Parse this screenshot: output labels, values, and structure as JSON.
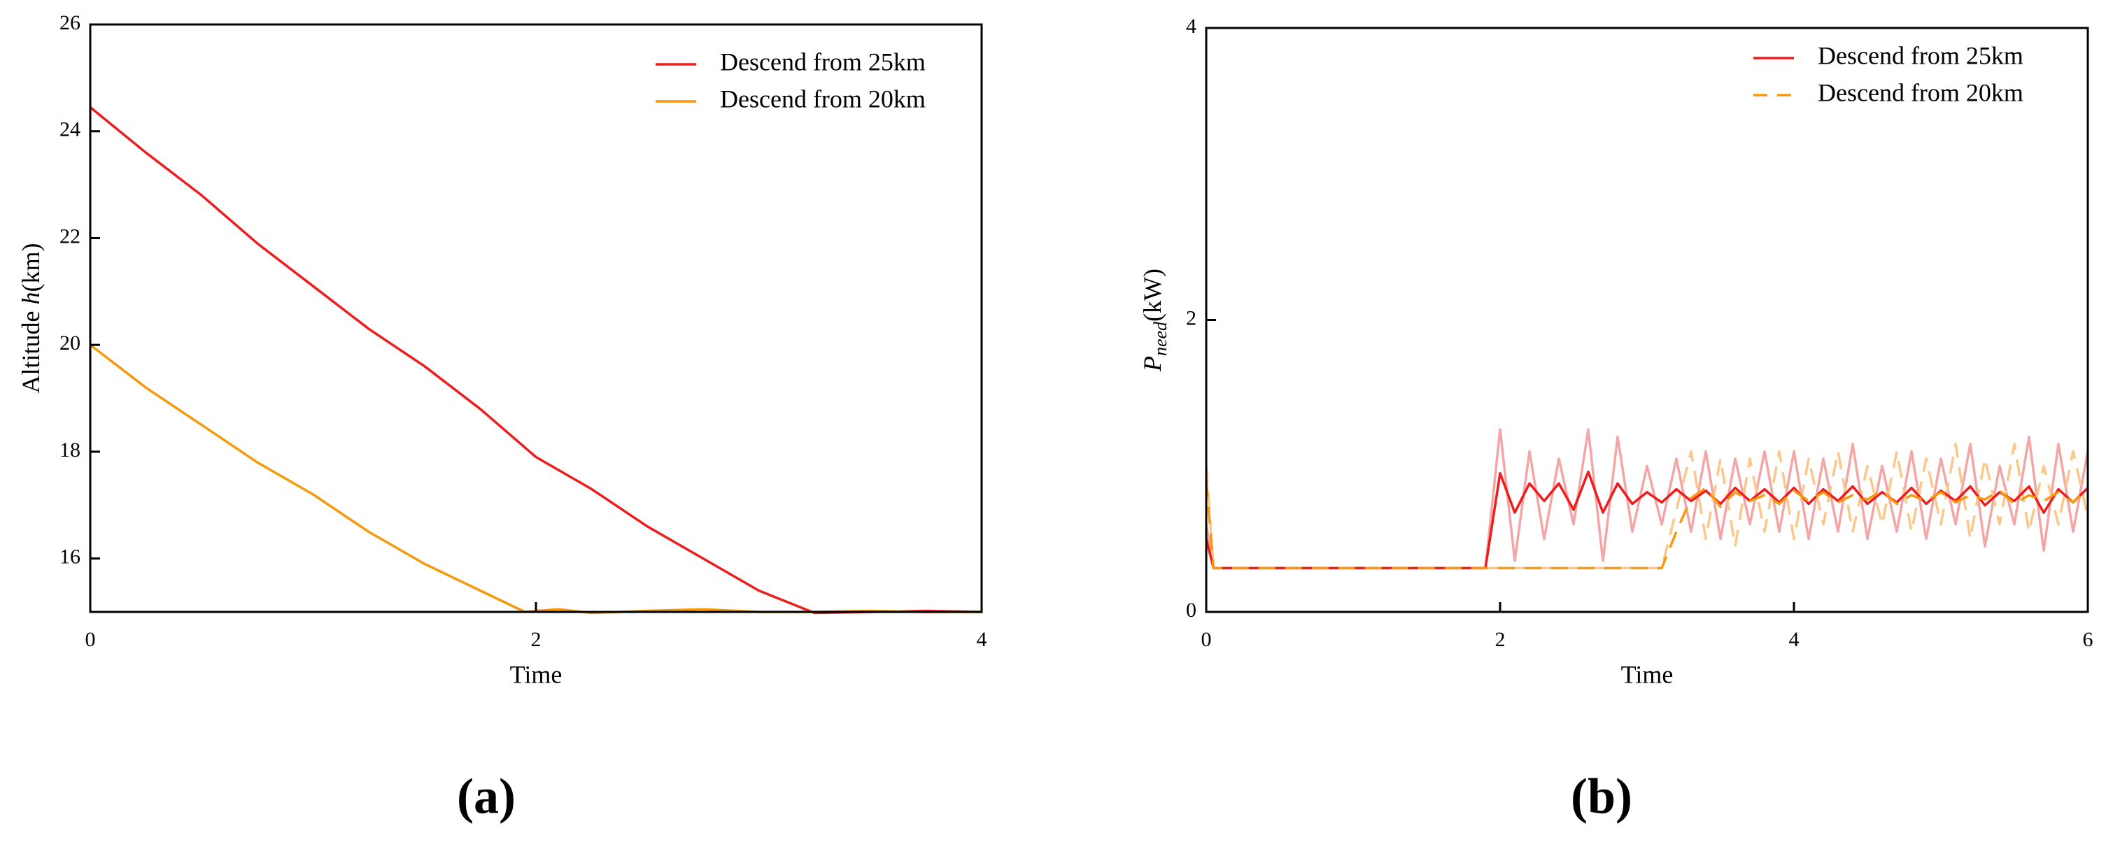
{
  "chart_data": [
    {
      "type": "line",
      "panel_label": "(a)",
      "xlabel": "Time",
      "ylabel": [
        "Altitude ",
        "h",
        "(km)"
      ],
      "ylabel_styles": [
        "normal",
        "italic",
        "normal"
      ],
      "xlim": [
        0,
        4
      ],
      "xticks": [
        0,
        2,
        4
      ],
      "ylim": [
        15,
        26
      ],
      "yticks": [
        16,
        18,
        20,
        22,
        24,
        26
      ],
      "series": [
        {
          "name": "Descend from 25km",
          "color": "#ee1c1c",
          "dash": false,
          "x": [
            0,
            0.25,
            0.5,
            0.75,
            1,
            1.25,
            1.5,
            1.75,
            2,
            2.25,
            2.5,
            2.75,
            3,
            3.25,
            3.5,
            3.75,
            4
          ],
          "values": [
            24.45,
            23.6,
            22.8,
            21.9,
            21.1,
            20.3,
            19.6,
            18.8,
            17.9,
            17.3,
            16.6,
            16.0,
            15.4,
            14.98,
            15.0,
            15.02,
            15.0
          ]
        },
        {
          "name": "Descend from 20km",
          "color": "#f7990c",
          "dash": false,
          "x": [
            0,
            0.25,
            0.5,
            0.75,
            1,
            1.25,
            1.5,
            1.75,
            1.95,
            2.1,
            2.25,
            2.5,
            2.75,
            3,
            3.25,
            3.5,
            3.75,
            4
          ],
          "values": [
            20,
            19.2,
            18.5,
            17.8,
            17.2,
            16.5,
            15.9,
            15.4,
            15.0,
            15.05,
            14.98,
            15.02,
            15.05,
            15.0,
            15.0,
            15.02,
            15.0,
            15.0
          ]
        }
      ]
    },
    {
      "type": "line",
      "panel_label": "(b)",
      "xlabel": "Time",
      "ylabel": [
        "P",
        "need",
        "(kW)"
      ],
      "ylabel_styles": [
        "italic",
        "italic-sub",
        "normal"
      ],
      "xlim": [
        0,
        6
      ],
      "xticks": [
        0,
        2,
        4,
        6
      ],
      "ylim": [
        0,
        4
      ],
      "yticks": [
        0,
        2,
        4
      ],
      "series": [
        {
          "color": "#f4a6a6",
          "dash": false,
          "x": [
            0,
            0.05,
            0.1,
            0.2,
            0.3,
            0.4,
            0.5,
            0.6,
            0.7,
            0.8,
            0.9,
            1.0,
            1.1,
            1.2,
            1.3,
            1.4,
            1.5,
            1.6,
            1.7,
            1.8,
            1.9,
            2.0,
            2.1,
            2.2,
            2.3,
            2.4,
            2.5,
            2.6,
            2.7,
            2.8,
            2.9,
            3.0,
            3.1,
            3.2,
            3.3,
            3.4,
            3.5,
            3.6,
            3.7,
            3.8,
            3.9,
            4.0,
            4.1,
            4.2,
            4.3,
            4.4,
            4.5,
            4.6,
            4.7,
            4.8,
            4.9,
            5.0,
            5.1,
            5.2,
            5.3,
            5.4,
            5.5,
            5.6,
            5.7,
            5.8,
            5.9,
            6.0
          ],
          "values": [
            0.6,
            0.3,
            0.3,
            0.3,
            0.3,
            0.3,
            0.3,
            0.3,
            0.3,
            0.3,
            0.3,
            0.3,
            0.3,
            0.3,
            0.3,
            0.3,
            0.3,
            0.3,
            0.3,
            0.3,
            0.3,
            1.25,
            0.35,
            1.1,
            0.5,
            1.05,
            0.6,
            1.25,
            0.35,
            1.2,
            0.55,
            1.0,
            0.6,
            1.05,
            0.55,
            1.1,
            0.5,
            1.05,
            0.6,
            1.1,
            0.55,
            1.1,
            0.5,
            1.05,
            0.55,
            1.15,
            0.5,
            1.0,
            0.55,
            1.1,
            0.5,
            1.05,
            0.6,
            1.15,
            0.45,
            1.0,
            0.6,
            1.2,
            0.42,
            1.15,
            0.55,
            1.1
          ]
        },
        {
          "color": "#fbc88a",
          "dash": true,
          "x": [
            0,
            0.05,
            0.1,
            0.2,
            0.3,
            0.4,
            0.5,
            0.6,
            0.7,
            0.8,
            0.9,
            1.0,
            1.1,
            1.2,
            1.3,
            1.4,
            1.5,
            1.6,
            1.7,
            1.8,
            1.9,
            2.0,
            2.1,
            2.2,
            2.3,
            2.4,
            2.5,
            2.6,
            2.7,
            2.8,
            2.9,
            3.0,
            3.1,
            3.2,
            3.3,
            3.4,
            3.5,
            3.6,
            3.7,
            3.8,
            3.9,
            4.0,
            4.1,
            4.2,
            4.3,
            4.4,
            4.5,
            4.6,
            4.7,
            4.8,
            4.9,
            5.0,
            5.1,
            5.2,
            5.3,
            5.4,
            5.5,
            5.6,
            5.7,
            5.8,
            5.9,
            6.0
          ],
          "values": [
            1.0,
            0.3,
            0.3,
            0.3,
            0.3,
            0.3,
            0.3,
            0.3,
            0.3,
            0.3,
            0.3,
            0.3,
            0.3,
            0.3,
            0.3,
            0.3,
            0.3,
            0.3,
            0.3,
            0.3,
            0.3,
            0.3,
            0.3,
            0.3,
            0.3,
            0.3,
            0.3,
            0.3,
            0.3,
            0.3,
            0.3,
            0.3,
            0.3,
            0.7,
            1.1,
            0.5,
            1.05,
            0.45,
            1.05,
            0.55,
            1.1,
            0.5,
            1.05,
            0.6,
            1.1,
            0.55,
            1.0,
            0.6,
            1.1,
            0.55,
            1.05,
            0.6,
            1.15,
            0.5,
            1.05,
            0.6,
            1.15,
            0.55,
            1.0,
            0.6,
            1.1,
            0.65
          ]
        },
        {
          "name": "Descend from 25km",
          "color": "#ee1c1c",
          "dash": false,
          "x": [
            0,
            0.05,
            0.1,
            0.2,
            0.3,
            0.4,
            0.5,
            0.6,
            0.7,
            0.8,
            0.9,
            1.0,
            1.1,
            1.2,
            1.3,
            1.4,
            1.5,
            1.6,
            1.7,
            1.8,
            1.9,
            2.0,
            2.1,
            2.2,
            2.3,
            2.4,
            2.5,
            2.6,
            2.7,
            2.8,
            2.9,
            3.0,
            3.1,
            3.2,
            3.3,
            3.4,
            3.5,
            3.6,
            3.7,
            3.8,
            3.9,
            4.0,
            4.1,
            4.2,
            4.3,
            4.4,
            4.5,
            4.6,
            4.7,
            4.8,
            4.9,
            5.0,
            5.1,
            5.2,
            5.3,
            5.4,
            5.5,
            5.6,
            5.7,
            5.8,
            5.9,
            6.0
          ],
          "values": [
            0.5,
            0.3,
            0.3,
            0.3,
            0.3,
            0.3,
            0.3,
            0.3,
            0.3,
            0.3,
            0.3,
            0.3,
            0.3,
            0.3,
            0.3,
            0.3,
            0.3,
            0.3,
            0.3,
            0.3,
            0.3,
            0.95,
            0.68,
            0.88,
            0.76,
            0.88,
            0.7,
            0.96,
            0.68,
            0.88,
            0.74,
            0.82,
            0.75,
            0.84,
            0.76,
            0.83,
            0.74,
            0.85,
            0.76,
            0.84,
            0.75,
            0.85,
            0.74,
            0.84,
            0.76,
            0.86,
            0.74,
            0.82,
            0.75,
            0.85,
            0.74,
            0.83,
            0.76,
            0.86,
            0.73,
            0.82,
            0.76,
            0.86,
            0.68,
            0.84,
            0.75,
            0.85
          ]
        },
        {
          "name": "Descend from 20km",
          "color": "#f7990c",
          "dash": true,
          "x": [
            0,
            0.05,
            0.1,
            0.2,
            0.3,
            0.4,
            0.5,
            0.6,
            0.7,
            0.8,
            0.9,
            1.0,
            1.1,
            1.2,
            1.3,
            1.4,
            1.5,
            1.6,
            1.7,
            1.8,
            1.9,
            2.0,
            2.1,
            2.2,
            2.3,
            2.4,
            2.5,
            2.6,
            2.7,
            2.8,
            2.9,
            3.0,
            3.1,
            3.2,
            3.3,
            3.4,
            3.5,
            3.6,
            3.7,
            3.8,
            3.9,
            4.0,
            4.1,
            4.2,
            4.3,
            4.4,
            4.5,
            4.6,
            4.7,
            4.8,
            4.9,
            5.0,
            5.1,
            5.2,
            5.3,
            5.4,
            5.5,
            5.6,
            5.7,
            5.8,
            5.9,
            6.0
          ],
          "values": [
            0.9,
            0.3,
            0.3,
            0.3,
            0.3,
            0.3,
            0.3,
            0.3,
            0.3,
            0.3,
            0.3,
            0.3,
            0.3,
            0.3,
            0.3,
            0.3,
            0.3,
            0.3,
            0.3,
            0.3,
            0.3,
            0.3,
            0.3,
            0.3,
            0.3,
            0.3,
            0.3,
            0.3,
            0.3,
            0.3,
            0.3,
            0.3,
            0.3,
            0.55,
            0.78,
            0.85,
            0.72,
            0.82,
            0.76,
            0.8,
            0.74,
            0.83,
            0.76,
            0.82,
            0.75,
            0.8,
            0.77,
            0.83,
            0.74,
            0.8,
            0.76,
            0.82,
            0.75,
            0.8,
            0.77,
            0.83,
            0.74,
            0.8,
            0.76,
            0.82,
            0.75,
            0.84
          ]
        }
      ]
    }
  ]
}
